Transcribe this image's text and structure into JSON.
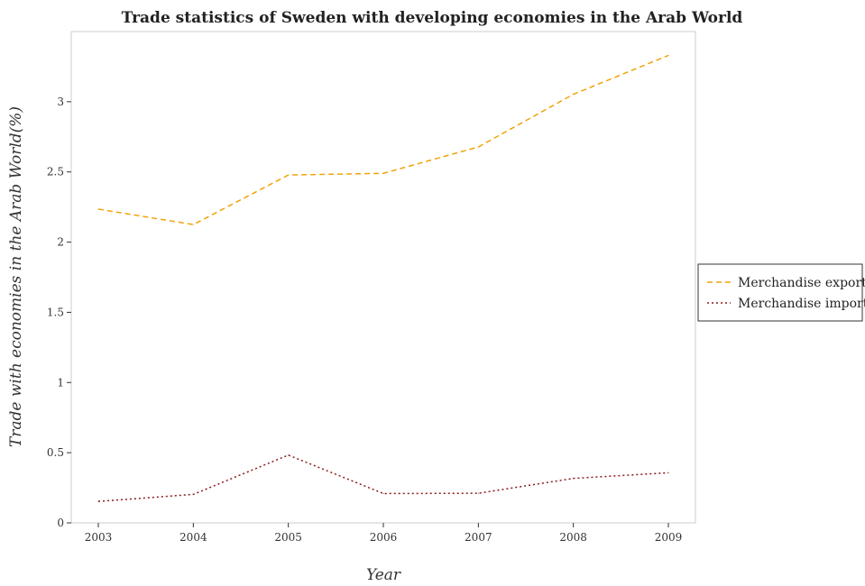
{
  "chart_data": {
    "type": "line",
    "title": "Trade statistics of Sweden with developing economies in the Arab World",
    "xlabel": "Year",
    "ylabel": "Trade with economies in the Arab World(%)",
    "categories": [
      "2003",
      "2004",
      "2005",
      "2006",
      "2007",
      "2008",
      "2009"
    ],
    "ylim": [
      0,
      3.5
    ],
    "yticks": [
      0,
      0.5,
      1,
      1.5,
      2,
      2.5,
      3
    ],
    "ytick_labels": [
      "0",
      "0.5",
      "1",
      "1.5",
      "2",
      "2.5",
      "3"
    ],
    "grid": false,
    "legend_position": "right",
    "series": [
      {
        "name": "Merchandise exports",
        "color": "#f0a30a",
        "dash": "dashed",
        "values": [
          2.235,
          2.125,
          2.478,
          2.49,
          2.678,
          3.053,
          3.33
        ]
      },
      {
        "name": "Merchandise imports",
        "color": "#8b1a1a",
        "dash": "dotted",
        "values": [
          0.153,
          0.203,
          0.483,
          0.209,
          0.211,
          0.317,
          0.357
        ]
      }
    ]
  }
}
